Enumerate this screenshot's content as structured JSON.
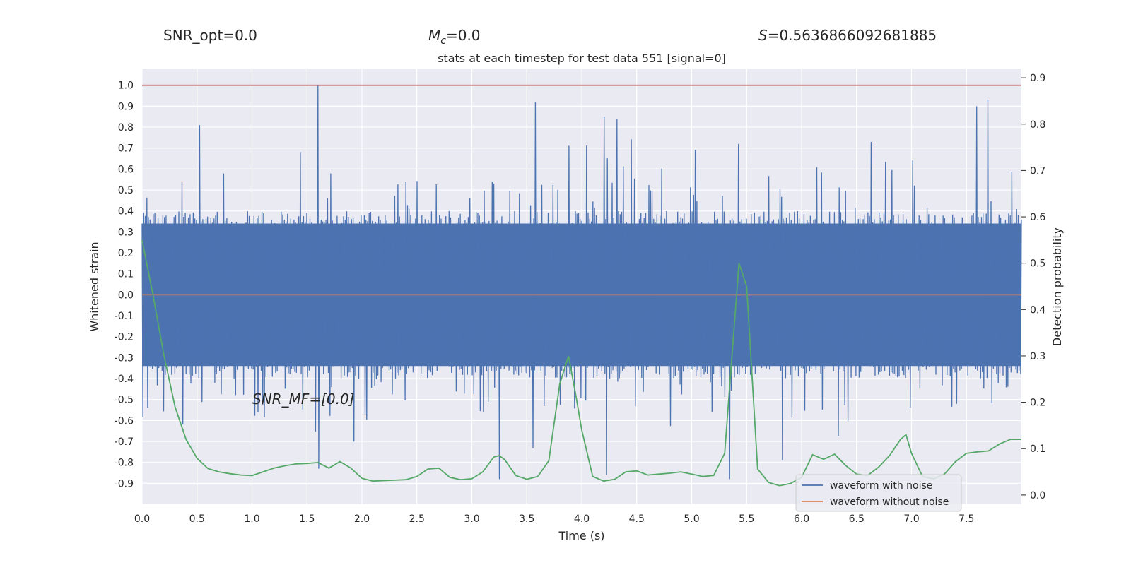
{
  "header": {
    "snr_opt": "SNR_opt=0.0",
    "mc_symbol": "M",
    "mc_sub": "c",
    "mc_value": "=0.0",
    "s_symbol": "S",
    "s_value": "=0.5636866092681885"
  },
  "chart_data": {
    "type": "line",
    "title": "stats at each timestep for test data 551 [signal=0]",
    "xlabel": "Time (s)",
    "ylabel": "Whitened strain",
    "y2label": "Detection probability",
    "xlim": [
      0,
      8.0
    ],
    "ylim": [
      -1.0,
      1.08
    ],
    "y2lim": [
      -0.02,
      0.92
    ],
    "xticks": [
      "0.0",
      "0.5",
      "1.0",
      "1.5",
      "2.0",
      "2.5",
      "3.0",
      "3.5",
      "4.0",
      "4.5",
      "5.0",
      "5.5",
      "6.0",
      "6.5",
      "7.0",
      "7.5"
    ],
    "yticks": [
      "1.0",
      "0.9",
      "0.8",
      "0.7",
      "0.6",
      "0.5",
      "0.4",
      "0.3",
      "0.2",
      "0.1",
      "0.0",
      "-0.1",
      "-0.2",
      "-0.3",
      "-0.4",
      "-0.5",
      "-0.6",
      "-0.7",
      "-0.8",
      "-0.9"
    ],
    "y2ticks": [
      "0.9",
      "0.8",
      "0.7",
      "0.6",
      "0.5",
      "0.4",
      "0.3",
      "0.2",
      "0.1",
      "0.0"
    ],
    "grid": true,
    "annotation": "SNR_MF=[0.0]",
    "threshold_line": {
      "y": 1.0,
      "color": "#c44e52"
    },
    "legend": {
      "placement": "lower-right",
      "entries": [
        {
          "label": "waveform with noise",
          "color": "#4c72b0"
        },
        {
          "label": "waveform without noise",
          "color": "#dd8452"
        }
      ]
    },
    "series": [
      {
        "name": "waveform with noise",
        "color": "#4c72b0",
        "axis": "left",
        "style": "dense noise, band approx -0.35 to 0.35",
        "peaks": [
          {
            "x": 1.6,
            "y": 1.0
          },
          {
            "x": 3.58,
            "y": 0.92
          },
          {
            "x": 4.2,
            "y": 0.85
          },
          {
            "x": 4.32,
            "y": 0.84
          },
          {
            "x": 5.43,
            "y": 0.72
          },
          {
            "x": 7.7,
            "y": 0.93
          },
          {
            "x": 7.6,
            "y": 0.9
          },
          {
            "x": 0.53,
            "y": 0.81
          },
          {
            "x": 3.25,
            "y": -0.88
          },
          {
            "x": 5.35,
            "y": -0.88
          },
          {
            "x": 1.6,
            "y": -0.83
          },
          {
            "x": 4.22,
            "y": -0.86
          }
        ]
      },
      {
        "name": "waveform without noise",
        "color": "#dd8452",
        "axis": "left",
        "x": [
          0.0,
          8.0
        ],
        "y": [
          0.0,
          0.0
        ]
      },
      {
        "name": "detection probability",
        "color": "#55a868",
        "axis": "right",
        "x": [
          0.0,
          0.1,
          0.2,
          0.3,
          0.4,
          0.5,
          0.6,
          0.7,
          0.8,
          0.9,
          1.0,
          1.1,
          1.2,
          1.3,
          1.4,
          1.5,
          1.6,
          1.7,
          1.8,
          1.9,
          2.0,
          2.1,
          2.2,
          2.3,
          2.4,
          2.5,
          2.6,
          2.7,
          2.8,
          2.9,
          3.0,
          3.1,
          3.2,
          3.25,
          3.3,
          3.4,
          3.5,
          3.6,
          3.7,
          3.8,
          3.88,
          3.95,
          4.0,
          4.1,
          4.2,
          4.3,
          4.4,
          4.5,
          4.6,
          4.7,
          4.8,
          4.9,
          5.0,
          5.1,
          5.2,
          5.3,
          5.36,
          5.43,
          5.5,
          5.6,
          5.7,
          5.8,
          5.9,
          6.0,
          6.1,
          6.2,
          6.3,
          6.4,
          6.5,
          6.6,
          6.7,
          6.8,
          6.9,
          6.95,
          7.0,
          7.1,
          7.2,
          7.3,
          7.4,
          7.5,
          7.6,
          7.7,
          7.8,
          7.9,
          8.0
        ],
        "y": [
          0.55,
          0.43,
          0.3,
          0.19,
          0.12,
          0.079,
          0.057,
          0.05,
          0.046,
          0.043,
          0.042,
          0.05,
          0.058,
          0.063,
          0.067,
          0.068,
          0.07,
          0.058,
          0.072,
          0.058,
          0.036,
          0.03,
          0.031,
          0.032,
          0.033,
          0.04,
          0.056,
          0.058,
          0.038,
          0.033,
          0.035,
          0.05,
          0.082,
          0.085,
          0.076,
          0.042,
          0.034,
          0.04,
          0.074,
          0.24,
          0.3,
          0.21,
          0.14,
          0.04,
          0.03,
          0.034,
          0.05,
          0.052,
          0.043,
          0.045,
          0.047,
          0.05,
          0.045,
          0.04,
          0.042,
          0.09,
          0.28,
          0.5,
          0.45,
          0.056,
          0.027,
          0.02,
          0.025,
          0.038,
          0.087,
          0.077,
          0.088,
          0.064,
          0.045,
          0.042,
          0.06,
          0.085,
          0.12,
          0.13,
          0.09,
          0.04,
          0.035,
          0.045,
          0.072,
          0.09,
          0.093,
          0.095,
          0.11,
          0.12,
          0.12
        ]
      }
    ]
  }
}
